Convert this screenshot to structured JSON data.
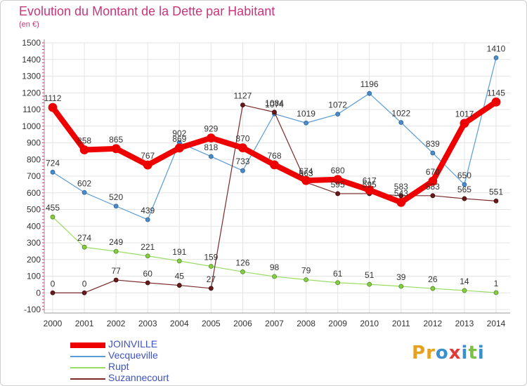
{
  "title": "Evolution du Montant de la Dette par Habitant",
  "subtitle": "(en €)",
  "logo": {
    "text": "Proxiti",
    "letters": [
      "P",
      "r",
      "o",
      "x",
      "i",
      "t",
      "i"
    ],
    "colors": [
      "#e8a020",
      "#e8a020",
      "#3a8fd0",
      "#e03a3a",
      "#3a8fd0",
      "#7cc242",
      "#3a8fd0"
    ]
  },
  "chart_data": {
    "type": "line",
    "title": "Evolution du Montant de la Dette par Habitant",
    "ylabel": "(en €)",
    "xlabel": "",
    "x": [
      "2000",
      "2001",
      "2002",
      "2003",
      "2004",
      "2005",
      "2006",
      "2007",
      "2008",
      "2009",
      "2010",
      "2011",
      "2012",
      "2013",
      "2014"
    ],
    "ylim": [
      -100,
      1500
    ],
    "yticks": [
      -100,
      0,
      100,
      200,
      300,
      400,
      500,
      600,
      700,
      800,
      900,
      1000,
      1100,
      1200,
      1300,
      1400,
      1500
    ],
    "grid": true,
    "legend_position": "bottom-left",
    "series": [
      {
        "name": "Vecqueville",
        "color": "#5a9bd5",
        "values": [
          724,
          602,
          520,
          439,
          902,
          818,
          733,
          1074,
          1019,
          1072,
          1196,
          1022,
          839,
          650,
          1410
        ]
      },
      {
        "name": "Rupt",
        "color": "#99dd66",
        "values": [
          455,
          274,
          249,
          221,
          191,
          159,
          126,
          98,
          79,
          61,
          51,
          39,
          26,
          14,
          1
        ]
      },
      {
        "name": "Suzannecourt",
        "color": "#7a2a2a",
        "values": [
          0,
          0,
          77,
          60,
          45,
          27,
          1127,
          1084,
          663,
          595,
          595,
          583,
          583,
          565,
          551
        ]
      },
      {
        "name": "JOINVILLE",
        "color": "#ee0000",
        "values": [
          1112,
          858,
          865,
          767,
          869,
          929,
          870,
          768,
          674,
          680,
          617,
          543,
          670,
          1017,
          1145
        ]
      }
    ]
  }
}
